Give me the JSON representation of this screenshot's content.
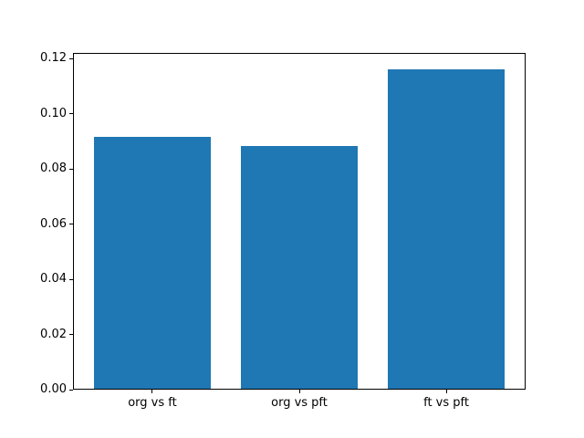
{
  "figure": {
    "background": "#ffffff",
    "spine_color": "#000000",
    "text_color": "#000000"
  },
  "chart_data": {
    "type": "bar",
    "categories": [
      "org vs ft",
      "org vs pft",
      "ft vs pft"
    ],
    "values": [
      0.0915,
      0.0882,
      0.1162
    ],
    "title": "",
    "xlabel": "",
    "ylabel": "",
    "ylim": [
      0,
      0.122
    ],
    "yticks": [
      0,
      0.02,
      0.04,
      0.06,
      0.08,
      0.1,
      0.12
    ],
    "ytick_labels": [
      "0.00",
      "0.02",
      "0.04",
      "0.06",
      "0.08",
      "0.10",
      "0.12"
    ],
    "bar_color": "#1f77b4",
    "bar_width_fraction": 0.8,
    "x_margin_units": 0.54,
    "grid": false,
    "legend": null
  }
}
